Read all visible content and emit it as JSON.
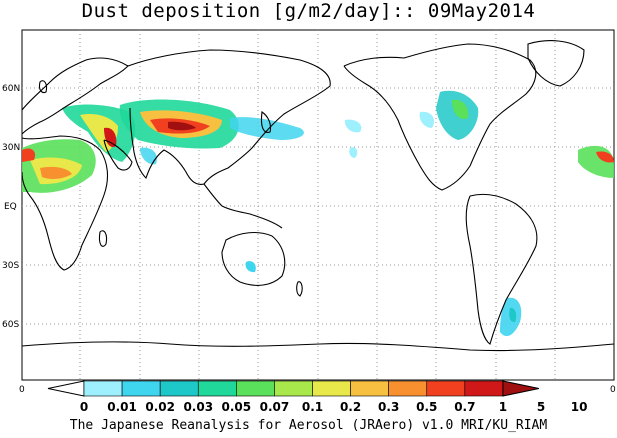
{
  "title": "Dust deposition [g/m2/day]:: 09May2014",
  "lat_labels": [
    "60N",
    "30N",
    "EQ",
    "30S",
    "60S"
  ],
  "lon_edge_labels": [
    "0",
    "0"
  ],
  "colorbar": {
    "labels": [
      "0",
      "0.01",
      "0.02",
      "0.03",
      "0.05",
      "0.07",
      "0.1",
      "0.2",
      "0.3",
      "0.5",
      "0.7",
      "1",
      "5",
      "10"
    ],
    "colors": [
      "#ffffff",
      "#9ff0ff",
      "#3fd5ef",
      "#1fc8c8",
      "#1fd89a",
      "#5ae05a",
      "#a8e84a",
      "#e8e84a",
      "#f8c040",
      "#f89030",
      "#f04020",
      "#d01818",
      "#a01010"
    ]
  },
  "footer": "The Japanese Reanalysis for Aerosol (JRAero) v1.0 MRI/KU_RIAM"
}
